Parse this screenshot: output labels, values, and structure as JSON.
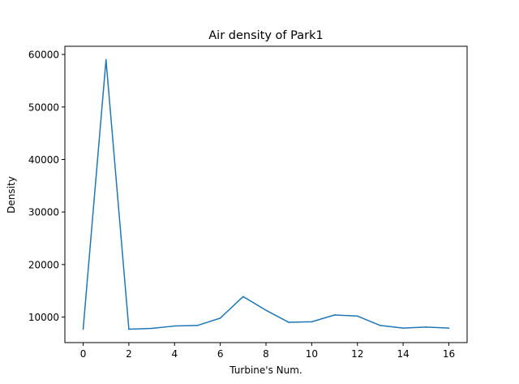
{
  "chart_data": {
    "type": "line",
    "title": "Air density of Park1",
    "xlabel": "Turbine's Num.",
    "ylabel": "Density",
    "x": [
      0,
      1,
      2,
      3,
      4,
      5,
      6,
      7,
      8,
      9,
      10,
      11,
      12,
      13,
      14,
      15,
      16
    ],
    "series": [
      {
        "values": [
          7700,
          59000,
          7700,
          7850,
          8300,
          8400,
          9800,
          13900,
          11300,
          9000,
          9100,
          10400,
          10200,
          8400,
          7900,
          8100,
          7900
        ],
        "color": "#1f77b4"
      }
    ],
    "xlim": [
      -0.8,
      16.8
    ],
    "ylim": [
      5140,
      61560
    ],
    "xticks": [
      0,
      2,
      4,
      6,
      8,
      10,
      12,
      14,
      16
    ],
    "xtick_labels": [
      "0",
      "2",
      "4",
      "6",
      "8",
      "10",
      "12",
      "14",
      "16"
    ],
    "yticks": [
      10000,
      20000,
      30000,
      40000,
      50000,
      60000
    ],
    "ytick_labels": [
      "10000",
      "20000",
      "30000",
      "40000",
      "50000",
      "60000"
    ],
    "grid": false,
    "legend": false
  }
}
